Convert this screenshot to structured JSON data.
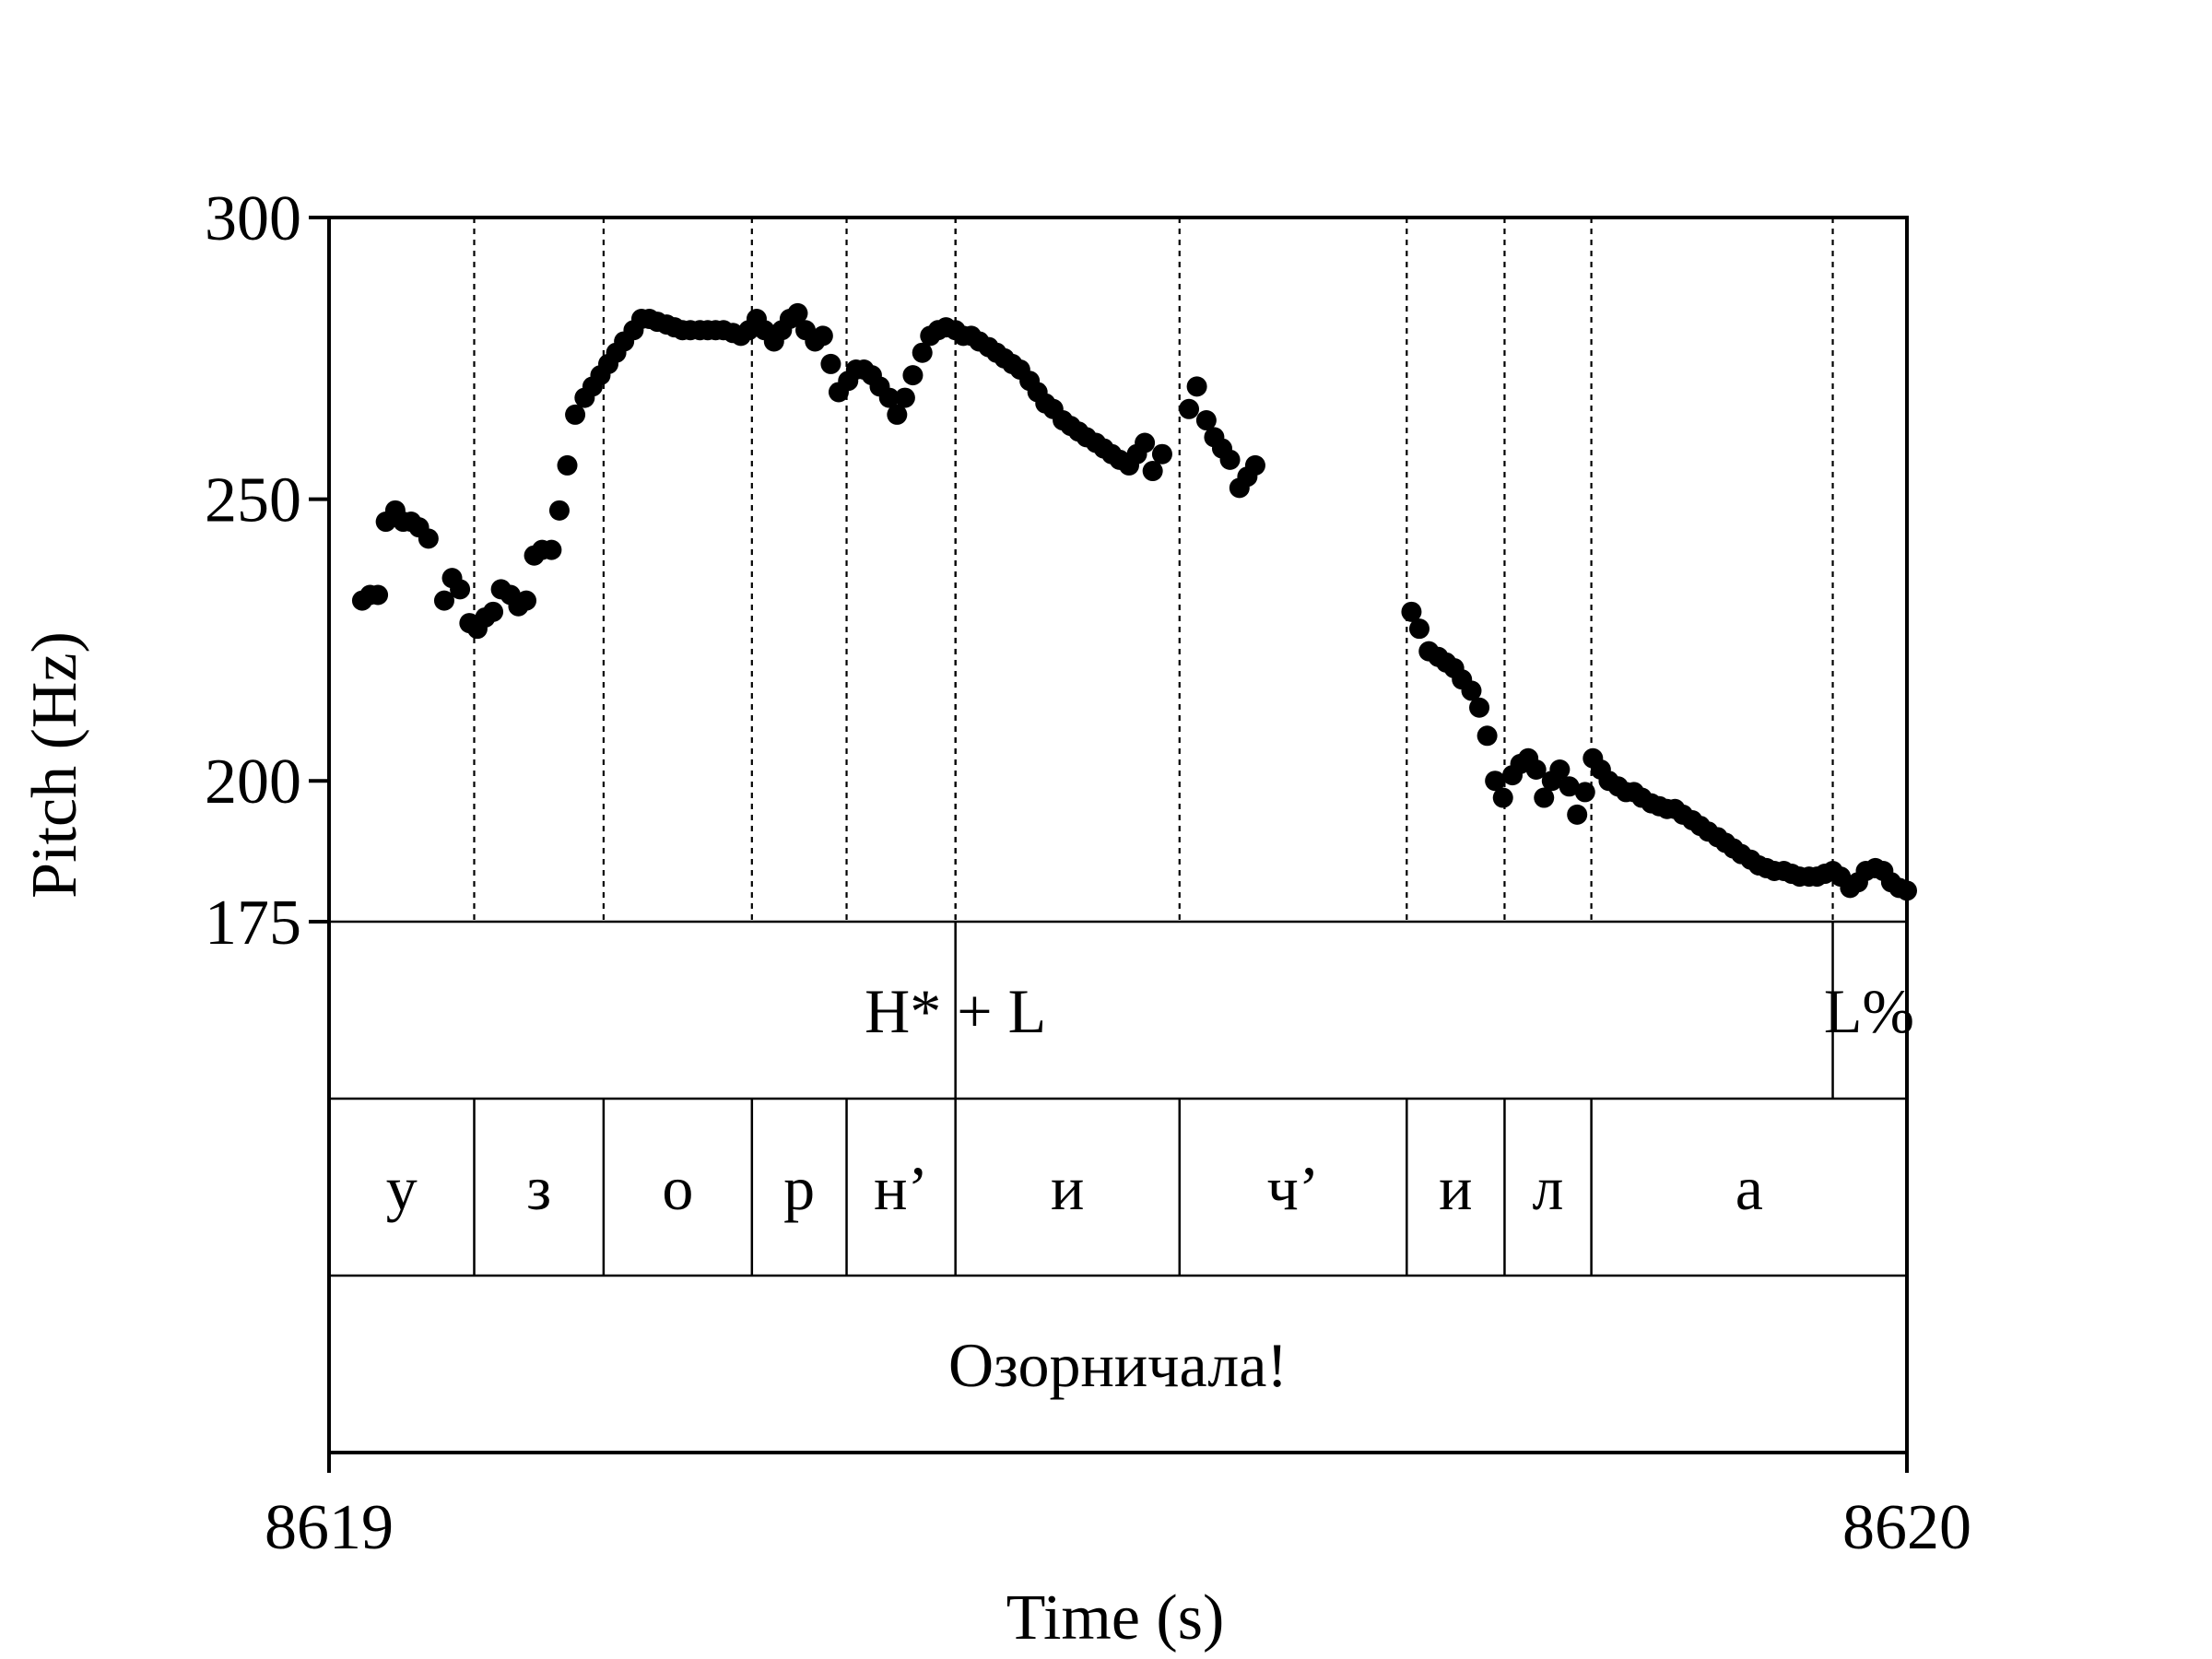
{
  "chart_data": {
    "type": "scatter",
    "xlabel": "Time (s)",
    "ylabel": "Pitch (Hz)",
    "xlim": [
      8619,
      8620
    ],
    "ylim": [
      175,
      300
    ],
    "yticks": [
      175,
      200,
      250,
      300
    ],
    "xticks": [
      8619,
      8620
    ],
    "grid": false,
    "colors": {
      "points": "#000000",
      "frame": "#000000"
    },
    "series": [
      {
        "points": [
          [
            8619.021,
            232
          ],
          [
            8619.026,
            233
          ],
          [
            8619.031,
            233
          ],
          [
            8619.036,
            246
          ],
          [
            8619.042,
            248
          ],
          [
            8619.047,
            246
          ],
          [
            8619.052,
            246
          ],
          [
            8619.057,
            245
          ],
          [
            8619.063,
            243
          ],
          [
            8619.073,
            232
          ],
          [
            8619.078,
            236
          ],
          [
            8619.083,
            234
          ],
          [
            8619.089,
            228
          ],
          [
            8619.094,
            227
          ],
          [
            8619.099,
            229
          ],
          [
            8619.104,
            230
          ],
          [
            8619.109,
            234
          ],
          [
            8619.115,
            233
          ],
          [
            8619.12,
            231
          ],
          [
            8619.125,
            232
          ],
          [
            8619.13,
            240
          ],
          [
            8619.135,
            241
          ],
          [
            8619.141,
            241
          ],
          [
            8619.146,
            248
          ],
          [
            8619.151,
            256
          ],
          [
            8619.156,
            265
          ],
          [
            8619.162,
            268
          ],
          [
            8619.167,
            270
          ],
          [
            8619.172,
            272
          ],
          [
            8619.177,
            274
          ],
          [
            8619.182,
            276
          ],
          [
            8619.187,
            278
          ],
          [
            8619.193,
            280
          ],
          [
            8619.198,
            282
          ],
          [
            8619.203,
            282
          ],
          [
            8619.208,
            281.5
          ],
          [
            8619.214,
            281
          ],
          [
            8619.219,
            280.5
          ],
          [
            8619.224,
            280
          ],
          [
            8619.229,
            280
          ],
          [
            8619.235,
            280
          ],
          [
            8619.24,
            280
          ],
          [
            8619.245,
            280
          ],
          [
            8619.25,
            280
          ],
          [
            8619.256,
            279.5
          ],
          [
            8619.261,
            279
          ],
          [
            8619.266,
            280
          ],
          [
            8619.271,
            282
          ],
          [
            8619.276,
            280
          ],
          [
            8619.282,
            278
          ],
          [
            8619.287,
            280
          ],
          [
            8619.292,
            282
          ],
          [
            8619.297,
            283
          ],
          [
            8619.302,
            280
          ],
          [
            8619.308,
            278
          ],
          [
            8619.313,
            279
          ],
          [
            8619.318,
            274
          ],
          [
            8619.323,
            269
          ],
          [
            8619.329,
            271
          ],
          [
            8619.334,
            273
          ],
          [
            8619.339,
            273
          ],
          [
            8619.344,
            272
          ],
          [
            8619.349,
            270
          ],
          [
            8619.355,
            268
          ],
          [
            8619.36,
            265
          ],
          [
            8619.365,
            268
          ],
          [
            8619.37,
            272
          ],
          [
            8619.376,
            276
          ],
          [
            8619.381,
            279
          ],
          [
            8619.386,
            280
          ],
          [
            8619.391,
            280.5
          ],
          [
            8619.397,
            280
          ],
          [
            8619.402,
            279
          ],
          [
            8619.407,
            279
          ],
          [
            8619.412,
            278
          ],
          [
            8619.418,
            277
          ],
          [
            8619.423,
            276
          ],
          [
            8619.428,
            275
          ],
          [
            8619.433,
            274
          ],
          [
            8619.438,
            273
          ],
          [
            8619.444,
            271
          ],
          [
            8619.449,
            269
          ],
          [
            8619.454,
            267
          ],
          [
            8619.459,
            266
          ],
          [
            8619.465,
            264
          ],
          [
            8619.47,
            263
          ],
          [
            8619.475,
            262
          ],
          [
            8619.48,
            261
          ],
          [
            8619.486,
            260
          ],
          [
            8619.491,
            259
          ],
          [
            8619.496,
            258
          ],
          [
            8619.501,
            257
          ],
          [
            8619.507,
            256
          ],
          [
            8619.512,
            258
          ],
          [
            8619.517,
            260
          ],
          [
            8619.522,
            255
          ],
          [
            8619.528,
            258
          ],
          [
            8619.545,
            266
          ],
          [
            8619.55,
            270
          ],
          [
            8619.556,
            264
          ],
          [
            8619.561,
            261
          ],
          [
            8619.566,
            259
          ],
          [
            8619.571,
            257
          ],
          [
            8619.577,
            252
          ],
          [
            8619.582,
            254
          ],
          [
            8619.587,
            256
          ],
          [
            8619.686,
            230
          ],
          [
            8619.691,
            227
          ],
          [
            8619.697,
            223
          ],
          [
            8619.703,
            222
          ],
          [
            8619.708,
            221
          ],
          [
            8619.713,
            220
          ],
          [
            8619.718,
            218
          ],
          [
            8619.724,
            216
          ],
          [
            8619.729,
            213
          ],
          [
            8619.734,
            208
          ],
          [
            8619.739,
            200
          ],
          [
            8619.744,
            197
          ],
          [
            8619.75,
            201
          ],
          [
            8619.755,
            203
          ],
          [
            8619.76,
            204
          ],
          [
            8619.765,
            202
          ],
          [
            8619.77,
            197
          ],
          [
            8619.775,
            200
          ],
          [
            8619.78,
            202
          ],
          [
            8619.786,
            199
          ],
          [
            8619.791,
            194
          ],
          [
            8619.796,
            198
          ],
          [
            8619.801,
            204
          ],
          [
            8619.806,
            202
          ],
          [
            8619.811,
            200
          ],
          [
            8619.817,
            199
          ],
          [
            8619.822,
            198
          ],
          [
            8619.827,
            198
          ],
          [
            8619.832,
            197
          ],
          [
            8619.838,
            196
          ],
          [
            8619.843,
            195.5
          ],
          [
            8619.848,
            195
          ],
          [
            8619.853,
            195
          ],
          [
            8619.858,
            194
          ],
          [
            8619.864,
            193
          ],
          [
            8619.869,
            192
          ],
          [
            8619.874,
            191
          ],
          [
            8619.88,
            190
          ],
          [
            8619.885,
            189
          ],
          [
            8619.89,
            188
          ],
          [
            8619.895,
            187
          ],
          [
            8619.901,
            186
          ],
          [
            8619.906,
            185
          ],
          [
            8619.911,
            184.5
          ],
          [
            8619.916,
            184
          ],
          [
            8619.922,
            184
          ],
          [
            8619.927,
            183.5
          ],
          [
            8619.932,
            183
          ],
          [
            8619.938,
            183
          ],
          [
            8619.943,
            183
          ],
          [
            8619.948,
            183.5
          ],
          [
            8619.953,
            184
          ],
          [
            8619.958,
            183
          ],
          [
            8619.964,
            181
          ],
          [
            8619.969,
            182
          ],
          [
            8619.974,
            184
          ],
          [
            8619.98,
            184.5
          ],
          [
            8619.985,
            184
          ],
          [
            8619.99,
            182
          ],
          [
            8619.995,
            181
          ],
          [
            8620.0,
            180.5
          ]
        ]
      }
    ],
    "tiers": [
      {
        "name": "tones",
        "boundaries": [
          8619.397,
          8619.953
        ],
        "labels": [
          {
            "text": "H* + L",
            "center": 8619.397
          },
          {
            "text": "L%",
            "center": 8619.976
          }
        ]
      },
      {
        "name": "segments",
        "boundaries": [
          8619.0,
          8619.092,
          8619.174,
          8619.268,
          8619.328,
          8619.397,
          8619.539,
          8619.683,
          8619.745,
          8619.8,
          8620.0
        ],
        "labels": [
          "у",
          "з",
          "о",
          "р",
          "н’",
          "и",
          "ч’",
          "и",
          "л",
          "а"
        ]
      },
      {
        "name": "word",
        "boundaries": [
          8619.0,
          8620.0
        ],
        "labels": [
          "Озорничала!"
        ]
      }
    ]
  }
}
